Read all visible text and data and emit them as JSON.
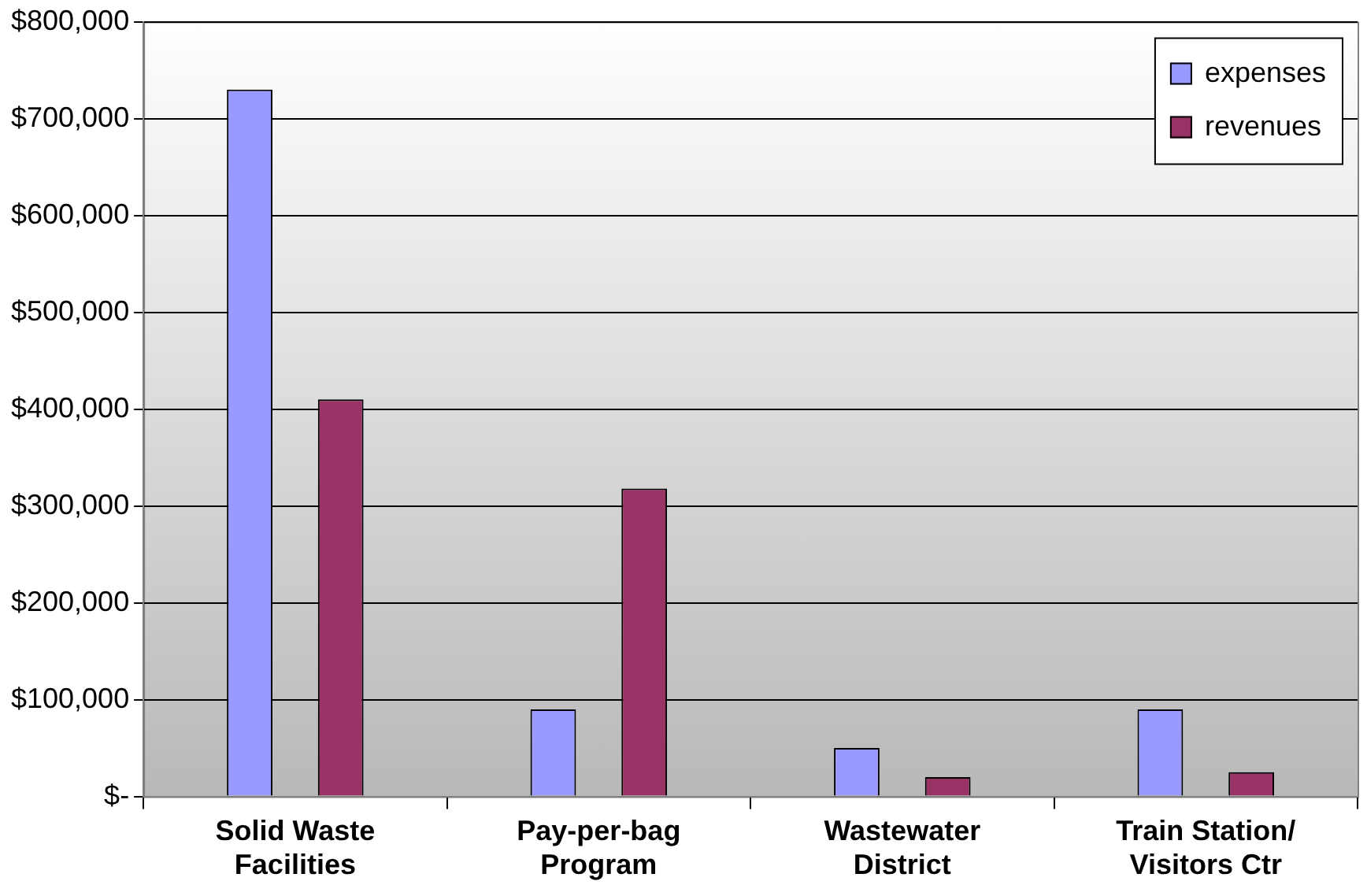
{
  "chart_data": {
    "type": "bar",
    "categories": [
      "Solid Waste\nFacilities",
      "Pay-per-bag\nProgram",
      "Wastewater\nDistrict",
      "Train Station/\nVisitors Ctr"
    ],
    "series": [
      {
        "name": "expenses",
        "color": "#9999ff",
        "values": [
          730000,
          90000,
          50000,
          90000
        ]
      },
      {
        "name": "revenues",
        "color": "#993366",
        "values": [
          410000,
          318000,
          20000,
          25000
        ]
      }
    ],
    "ylim": [
      0,
      800000
    ],
    "yticks": [
      {
        "value": 0,
        "label": "$-"
      },
      {
        "value": 100000,
        "label": "$100,000"
      },
      {
        "value": 200000,
        "label": "$200,000"
      },
      {
        "value": 300000,
        "label": "$300,000"
      },
      {
        "value": 400000,
        "label": "$400,000"
      },
      {
        "value": 500000,
        "label": "$500,000"
      },
      {
        "value": 600000,
        "label": "$600,000"
      },
      {
        "value": 700000,
        "label": "$700,000"
      },
      {
        "value": 800000,
        "label": "$800,000"
      }
    ],
    "grid": "y",
    "legend": "top right"
  }
}
